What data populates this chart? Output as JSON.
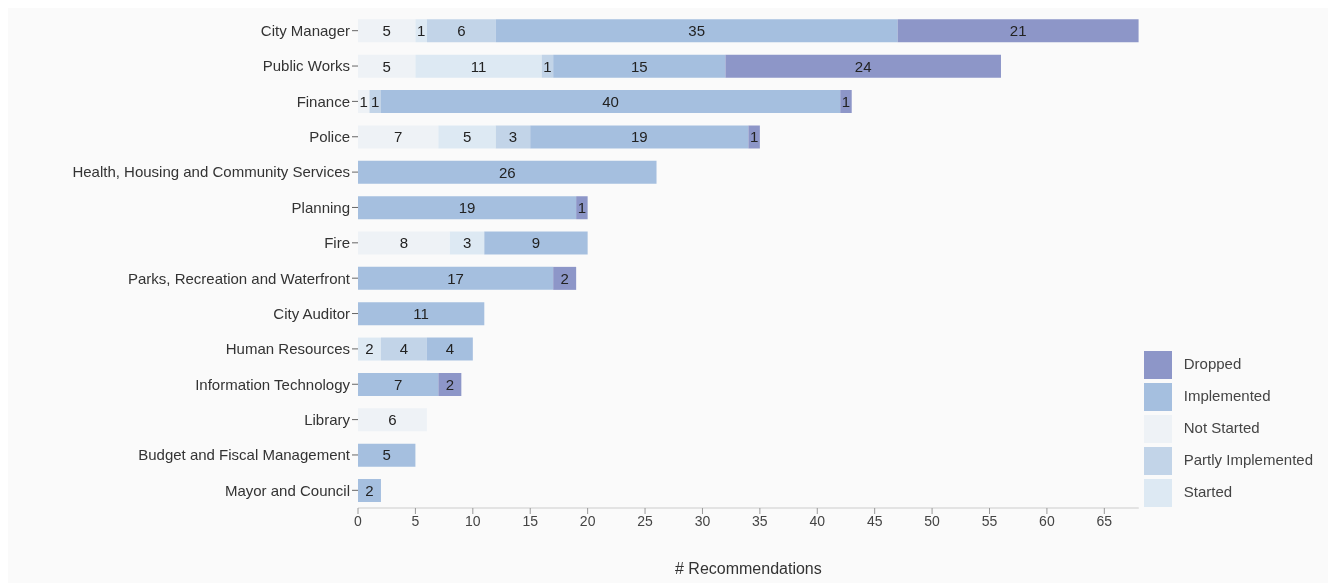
{
  "chart_data": {
    "type": "bar",
    "orientation": "horizontal",
    "stacked": true,
    "xlabel": "# Recommendations",
    "categories": [
      "City Manager",
      "Public Works",
      "Finance",
      "Police",
      "Health, Housing and Community Services",
      "Planning",
      "Fire",
      "Parks, Recreation and Waterfront",
      "City Auditor",
      "Human Resources",
      "Information Technology",
      "Library",
      "Budget and Fiscal Management",
      "Mayor and Council"
    ],
    "series": [
      {
        "name": "Not Started",
        "color": "#eef2f6",
        "values": [
          5,
          5,
          1,
          7,
          null,
          null,
          8,
          null,
          null,
          null,
          null,
          6,
          null,
          null
        ]
      },
      {
        "name": "Started",
        "color": "#dde9f3",
        "values": [
          1,
          11,
          null,
          5,
          null,
          null,
          3,
          null,
          null,
          2,
          null,
          null,
          null,
          null
        ]
      },
      {
        "name": "Partly Implemented",
        "color": "#c2d4e8",
        "values": [
          6,
          1,
          1,
          3,
          null,
          null,
          null,
          null,
          null,
          4,
          null,
          null,
          null,
          null
        ]
      },
      {
        "name": "Implemented",
        "color": "#a5bfdf",
        "values": [
          35,
          15,
          40,
          19,
          26,
          19,
          9,
          17,
          11,
          4,
          7,
          null,
          5,
          2
        ]
      },
      {
        "name": "Dropped",
        "color": "#8d96c8",
        "values": [
          21,
          24,
          1,
          1,
          null,
          1,
          null,
          2,
          null,
          null,
          2,
          null,
          null,
          null
        ]
      }
    ],
    "xlim": [
      0,
      68
    ],
    "xticks": [
      0,
      5,
      10,
      15,
      20,
      25,
      30,
      35,
      40,
      45,
      50,
      55,
      60,
      65
    ],
    "data_labels": true,
    "legend": "bottom right",
    "grid": false
  }
}
